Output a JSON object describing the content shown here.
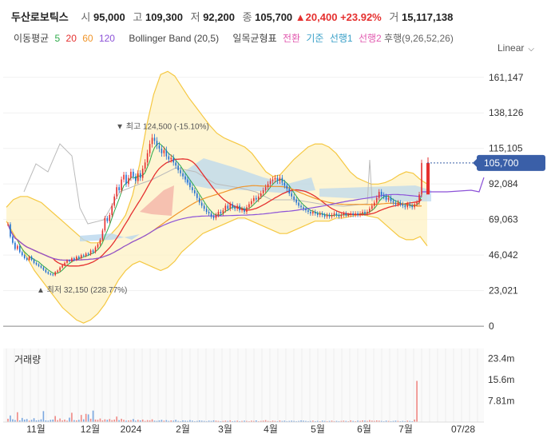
{
  "header": {
    "name": "두산로보틱스",
    "open_label": "시",
    "open": "95,000",
    "high_label": "고",
    "high": "109,300",
    "low_label": "저",
    "low": "92,200",
    "close_label": "종",
    "close": "105,700",
    "change": "▲20,400",
    "change_pct": "+23.92%",
    "volume_label": "거",
    "volume": "15,117,138"
  },
  "indicators": {
    "ma_label": "이동평균",
    "ma5": "5",
    "ma20": "20",
    "ma60": "60",
    "ma120": "120",
    "bollinger": "Bollinger Band (20,5)",
    "ichimoku_label": "일목균형표",
    "conversion": "전환",
    "base": "기준",
    "span1": "선행1",
    "span2": "선행2",
    "lagging": "후행(9,26,52,26)"
  },
  "scale_mode": "Linear",
  "colors": {
    "up": "#e5302f",
    "down": "#1f6fd0",
    "ma5": "#2eaa4a",
    "ma20": "#e5302f",
    "ma60": "#f0952b",
    "ma120": "#8c52d8",
    "conversion": "#e25bb0",
    "base": "#3aa0c8",
    "span1": "#3aa0c8",
    "span2": "#e25bb0",
    "bollinger": "#f5c842"
  },
  "chart_data": {
    "type": "candlestick",
    "price_axis": {
      "ticks": [
        161147,
        138126,
        115105,
        92084,
        69063,
        46042,
        23021,
        0
      ],
      "labels": [
        "161,147",
        "138,126",
        "115,105",
        "92,084",
        "69,063",
        "46,042",
        "23,021",
        "0"
      ],
      "min": -1000,
      "max": 175000
    },
    "current_price_label": "105,700",
    "x_axis": {
      "labels": [
        "11월",
        "12월",
        "2024",
        "2월",
        "3월",
        "4월",
        "5월",
        "6월",
        "7월",
        "07/28"
      ]
    },
    "high_annotation": "▼ 최고 124,500 (-15.10%)",
    "low_annotation": "▲ 최저 32,150 (228.77%)",
    "volume_title": "거래량",
    "volume_axis": {
      "ticks": [
        23.4,
        15.6,
        7.81
      ],
      "labels": [
        "23.4m",
        "15.6m",
        "7.81m"
      ],
      "max": 27.0
    },
    "candles_close": [
      66000,
      58000,
      54000,
      50000,
      52000,
      48000,
      46000,
      44000,
      43000,
      45000,
      43000,
      41000,
      40000,
      39000,
      38000,
      36500,
      35000,
      34000,
      33500,
      33000,
      35000,
      36000,
      38000,
      39500,
      41000,
      42500,
      42000,
      44000,
      43000,
      45000,
      44000,
      46000,
      45500,
      47000,
      46500,
      49000,
      48000,
      51000,
      53000,
      56000,
      62000,
      70000,
      68000,
      72000,
      78000,
      84000,
      90000,
      88000,
      95000,
      98000,
      92000,
      96000,
      100000,
      97000,
      94000,
      99000,
      96000,
      102000,
      106000,
      112000,
      118000,
      122000,
      120000,
      117000,
      115000,
      112000,
      114000,
      110000,
      108000,
      109000,
      106000,
      104000,
      101000,
      99000,
      97000,
      95000,
      93000,
      90000,
      88000,
      86000,
      83000,
      80000,
      78000,
      76000,
      74000,
      73000,
      71000,
      70000,
      72000,
      74000,
      73000,
      75000,
      78000,
      76000,
      79000,
      77000,
      76000,
      78000,
      75000,
      76000,
      74000,
      77000,
      79000,
      81000,
      83000,
      82000,
      84000,
      86000,
      88000,
      90000,
      92000,
      94000,
      95000,
      96000,
      94000,
      96000,
      93000,
      91000,
      89000,
      86000,
      84000,
      82000,
      80000,
      78000,
      77000,
      76000,
      75000,
      74000,
      73000,
      74000,
      73000,
      72000,
      73000,
      72000,
      71000,
      72000,
      71000,
      72000,
      73000,
      72000,
      71000,
      72000,
      73000,
      72000,
      72000,
      73000,
      72000,
      73000,
      72000,
      73000,
      74000,
      73000,
      74000,
      76000,
      78000,
      80000,
      83000,
      87000,
      85000,
      84000,
      82000,
      83000,
      81000,
      80000,
      79000,
      80000,
      79000,
      78000,
      77000,
      79000,
      78000,
      77000,
      79000,
      80000,
      85300,
      105700
    ],
    "volume_m": [
      1.2,
      2.4,
      1.0,
      0.7,
      3.6,
      0.6,
      1.5,
      0.9,
      1.1,
      0.5,
      0.8,
      1.4,
      0.6,
      0.7,
      1.0,
      4.0,
      0.6,
      0.5,
      0.8,
      0.9,
      2.2,
      0.7,
      1.3,
      0.6,
      0.9,
      0.5,
      1.6,
      3.4,
      0.7,
      0.6,
      0.8,
      2.6,
      1.0,
      3.0,
      2.8,
      1.2,
      4.2,
      0.9,
      0.8,
      1.3,
      0.6,
      1.0,
      0.8,
      1.1,
      0.7,
      0.9,
      2.0,
      0.7,
      1.2,
      0.8,
      0.5,
      0.6,
      0.7,
      1.1,
      0.5,
      0.8,
      0.6,
      0.9,
      0.4,
      0.7,
      0.6,
      1.0,
      0.5,
      0.4,
      0.6,
      0.8,
      0.5,
      0.7,
      0.4,
      0.6,
      0.5,
      0.8,
      0.4,
      0.3,
      0.6,
      0.5,
      0.4,
      0.7,
      0.5,
      0.3,
      0.4,
      0.6,
      0.5,
      0.4,
      0.3,
      0.5,
      0.4,
      0.6,
      0.5,
      0.4,
      0.3,
      0.4,
      0.5,
      0.4,
      0.6,
      0.3,
      0.4,
      0.5,
      0.3,
      0.4,
      0.5,
      0.4,
      0.3,
      0.5,
      0.4,
      0.6,
      0.3,
      0.4,
      0.5,
      0.7,
      0.4,
      0.3,
      0.5,
      0.4,
      0.3,
      0.6,
      0.4,
      0.5,
      0.3,
      0.4,
      0.5,
      0.4,
      0.3,
      0.4,
      0.6,
      0.5,
      0.4,
      0.3,
      0.4,
      0.5,
      0.3,
      0.4,
      0.3,
      0.5,
      0.4,
      0.3,
      0.4,
      0.5,
      0.3,
      0.4,
      0.3,
      0.4,
      0.5,
      0.4,
      0.3,
      0.6,
      0.4,
      0.3,
      0.5,
      0.4,
      0.6,
      0.5,
      0.4,
      0.7,
      0.5,
      0.4,
      0.6,
      0.5,
      0.4,
      0.3,
      0.5,
      0.4,
      0.3,
      0.4,
      0.5,
      0.4,
      0.3,
      0.4,
      0.3,
      0.5,
      0.4,
      0.3,
      0.9,
      15.1
    ],
    "bb_upper": [
      77000,
      82000,
      84000,
      84000,
      82000,
      80000,
      76000,
      72000,
      68000,
      64000,
      60000,
      56000,
      54000,
      54000,
      56000,
      60000,
      65000,
      72000,
      85000,
      105000,
      130000,
      150000,
      163000,
      165000,
      162000,
      155000,
      148000,
      142000,
      136000,
      130000,
      125000,
      122000,
      120000,
      118000,
      116000,
      112000,
      106000,
      100000,
      97000,
      98000,
      103000,
      108000,
      112000,
      116000,
      118000,
      118000,
      116000,
      112000,
      106000,
      100000,
      96000,
      94000,
      92000,
      92000,
      93000,
      95000,
      98000,
      100000,
      99000,
      95000,
      92000
    ],
    "bb_lower": [
      68000,
      60000,
      52000,
      44000,
      36000,
      30000,
      24000,
      18000,
      12000,
      8000,
      4000,
      2000,
      4000,
      8000,
      14000,
      22000,
      30000,
      36000,
      40000,
      42000,
      40000,
      38000,
      36000,
      38000,
      42000,
      48000,
      52000,
      56000,
      60000,
      62000,
      64000,
      66000,
      68000,
      70000,
      70000,
      68000,
      66000,
      64000,
      62000,
      60000,
      60000,
      62000,
      64000,
      66000,
      68000,
      68000,
      68000,
      70000,
      70000,
      71000,
      72000,
      72000,
      71000,
      70000,
      66000,
      62000,
      58000,
      56000,
      56000,
      58000,
      52000
    ]
  }
}
